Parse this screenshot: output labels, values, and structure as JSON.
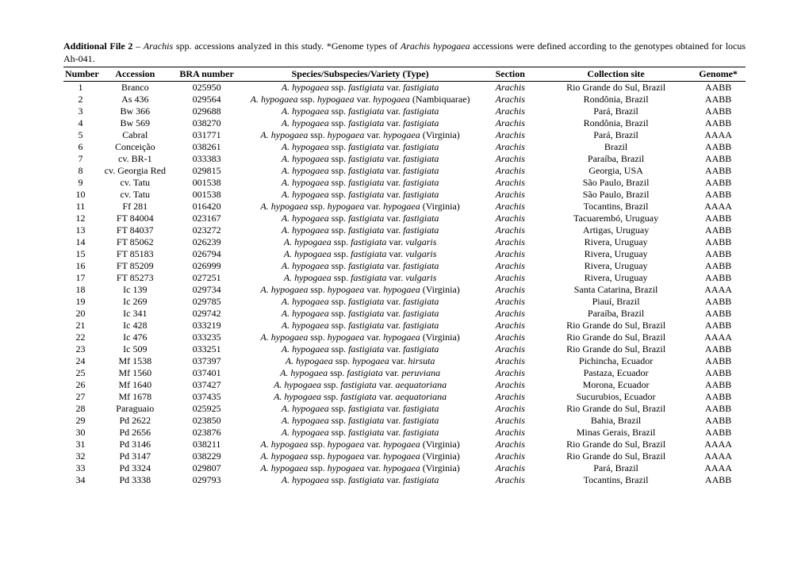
{
  "caption": {
    "label": "Additional File 2",
    "sep": " – ",
    "text1": "Arachis",
    "text2": " spp. accessions analyzed in this study. *Genome  types of ",
    "text3": "Arachis hypogaea",
    "text4": " accessions were defined according to the genotypes obtained for locus Ah-041."
  },
  "headers": {
    "num": "Number",
    "acc": "Accession",
    "bra": "BRA number",
    "sp": "Species/Subspecies/Variety (Type)",
    "sec": "Section",
    "site": "Collection site",
    "gen": "Genome*"
  },
  "rows": [
    {
      "n": "1",
      "acc": "Branco",
      "bra": "025950",
      "sp": [
        [
          "i",
          "A. hypogaea"
        ],
        [
          "r",
          " ssp. "
        ],
        [
          "i",
          "fastigiata"
        ],
        [
          "r",
          " var. "
        ],
        [
          "i",
          "fastigiata"
        ]
      ],
      "sec": "Arachis",
      "site": "Rio Grande do Sul, Brazil",
      "gen": "AABB"
    },
    {
      "n": "2",
      "acc": "As 436",
      "bra": "029564",
      "sp": [
        [
          "i",
          "A. hypogaea"
        ],
        [
          "r",
          " ssp. "
        ],
        [
          "i",
          "hypogaea"
        ],
        [
          "r",
          " var. "
        ],
        [
          "i",
          "hypogaea"
        ],
        [
          "r",
          " (Nambiquarae)"
        ]
      ],
      "sec": "Arachis",
      "site": "Rondônia, Brazil",
      "gen": "AABB"
    },
    {
      "n": "3",
      "acc": "Bw 366",
      "bra": "029688",
      "sp": [
        [
          "i",
          "A. hypogaea"
        ],
        [
          "r",
          " ssp. "
        ],
        [
          "i",
          "fastigiata"
        ],
        [
          "r",
          " var. "
        ],
        [
          "i",
          "fastigiata"
        ]
      ],
      "sec": "Arachis",
      "site": "Pará, Brazil",
      "gen": "AABB"
    },
    {
      "n": "4",
      "acc": "Bw 569",
      "bra": "038270",
      "sp": [
        [
          "i",
          "A. hypogaea"
        ],
        [
          "r",
          " ssp. "
        ],
        [
          "i",
          "fastigiata"
        ],
        [
          "r",
          " var. "
        ],
        [
          "i",
          "fastigiata"
        ]
      ],
      "sec": "Arachis",
      "site": "Rondônia, Brazil",
      "gen": "AABB"
    },
    {
      "n": "5",
      "acc": "Cabral",
      "bra": "031771",
      "sp": [
        [
          "i",
          "A. hypogaea"
        ],
        [
          "r",
          " ssp. "
        ],
        [
          "i",
          "hypogaea"
        ],
        [
          "r",
          " var. "
        ],
        [
          "i",
          "hypogaea"
        ],
        [
          "r",
          " (Virginia)"
        ]
      ],
      "sec": "Arachis",
      "site": "Pará, Brazil",
      "gen": "AAAA"
    },
    {
      "n": "6",
      "acc": "Conceição",
      "bra": "038261",
      "sp": [
        [
          "i",
          "A. hypogaea"
        ],
        [
          "r",
          " ssp. "
        ],
        [
          "i",
          "fastigiata"
        ],
        [
          "r",
          " var. "
        ],
        [
          "i",
          "fastigiata"
        ]
      ],
      "sec": "Arachis",
      "site": "Brazil",
      "gen": "AABB"
    },
    {
      "n": "7",
      "acc": "cv. BR-1",
      "bra": "033383",
      "sp": [
        [
          "i",
          "A. hypogaea"
        ],
        [
          "r",
          " ssp. "
        ],
        [
          "i",
          "fastigiata"
        ],
        [
          "r",
          " var. "
        ],
        [
          "i",
          "fastigiata"
        ]
      ],
      "sec": "Arachis",
      "site": "Paraíba, Brazil",
      "gen": "AABB"
    },
    {
      "n": "8",
      "acc": "cv. Georgia Red",
      "bra": "029815",
      "sp": [
        [
          "i",
          "A. hypogaea"
        ],
        [
          "r",
          " ssp. "
        ],
        [
          "i",
          "fastigiata"
        ],
        [
          "r",
          " var. "
        ],
        [
          "i",
          "fastigiata"
        ]
      ],
      "sec": "Arachis",
      "site": "Georgia, USA",
      "gen": "AABB"
    },
    {
      "n": "9",
      "acc": "cv. Tatu",
      "bra": "001538",
      "sp": [
        [
          "i",
          "A. hypogaea"
        ],
        [
          "r",
          " ssp. "
        ],
        [
          "i",
          "fastigiata"
        ],
        [
          "r",
          " var. "
        ],
        [
          "i",
          "fastigiata"
        ]
      ],
      "sec": "Arachis",
      "site": "São Paulo, Brazil",
      "gen": "AABB"
    },
    {
      "n": "10",
      "acc": "cv. Tatu",
      "bra": "001538",
      "sp": [
        [
          "i",
          "A. hypogaea"
        ],
        [
          "r",
          " ssp. "
        ],
        [
          "i",
          "fastigiata"
        ],
        [
          "r",
          " var. "
        ],
        [
          "i",
          "fastigiata"
        ]
      ],
      "sec": "Arachis",
      "site": "São Paulo, Brazil",
      "gen": "AABB"
    },
    {
      "n": "11",
      "acc": "Ff 281",
      "bra": "016420",
      "sp": [
        [
          "i",
          "A. hypogaea"
        ],
        [
          "r",
          " ssp. "
        ],
        [
          "i",
          "hypogaea"
        ],
        [
          "r",
          " var. "
        ],
        [
          "i",
          "hypogaea"
        ],
        [
          "r",
          " (Virginia)"
        ]
      ],
      "sec": "Arachis",
      "site": "Tocantins, Brazil",
      "gen": "AAAA"
    },
    {
      "n": "12",
      "acc": "FT 84004",
      "bra": "023167",
      "sp": [
        [
          "i",
          "A. hypogaea"
        ],
        [
          "r",
          " ssp. "
        ],
        [
          "i",
          "fastigiata"
        ],
        [
          "r",
          " var. "
        ],
        [
          "i",
          "fastigiata"
        ]
      ],
      "sec": "Arachis",
      "site": "Tacuarembó, Uruguay",
      "gen": "AABB"
    },
    {
      "n": "13",
      "acc": "FT 84037",
      "bra": "023272",
      "sp": [
        [
          "i",
          "A. hypogaea"
        ],
        [
          "r",
          " ssp. "
        ],
        [
          "i",
          "fastigiata"
        ],
        [
          "r",
          " var. "
        ],
        [
          "i",
          "fastigiata"
        ]
      ],
      "sec": "Arachis",
      "site": "Artigas, Uruguay",
      "gen": "AABB"
    },
    {
      "n": "14",
      "acc": "FT 85062",
      "bra": "026239",
      "sp": [
        [
          "i",
          "A. hypogaea"
        ],
        [
          "r",
          " ssp. "
        ],
        [
          "i",
          "fastigiata"
        ],
        [
          "r",
          " var. "
        ],
        [
          "i",
          "vulgaris"
        ]
      ],
      "sec": "Arachis",
      "site": "Rivera, Uruguay",
      "gen": "AABB"
    },
    {
      "n": "15",
      "acc": "FT 85183",
      "bra": "026794",
      "sp": [
        [
          "i",
          "A. hypogaea"
        ],
        [
          "r",
          " ssp. "
        ],
        [
          "i",
          "fastigiata"
        ],
        [
          "r",
          " var. "
        ],
        [
          "i",
          "vulgaris"
        ]
      ],
      "sec": "Arachis",
      "site": "Rivera, Uruguay",
      "gen": "AABB"
    },
    {
      "n": "16",
      "acc": "FT 85209",
      "bra": "026999",
      "sp": [
        [
          "i",
          "A. hypogaea"
        ],
        [
          "r",
          " ssp. "
        ],
        [
          "i",
          "fastigiata"
        ],
        [
          "r",
          " var. "
        ],
        [
          "i",
          "fastigiata"
        ]
      ],
      "sec": "Arachis",
      "site": "Rivera, Uruguay",
      "gen": "AABB"
    },
    {
      "n": "17",
      "acc": "FT 85273",
      "bra": "027251",
      "sp": [
        [
          "i",
          "A. hypogaea"
        ],
        [
          "r",
          " ssp. "
        ],
        [
          "i",
          "fastigiata"
        ],
        [
          "r",
          " var. "
        ],
        [
          "i",
          "vulgaris"
        ]
      ],
      "sec": "Arachis",
      "site": "Rivera, Uruguay",
      "gen": "AABB"
    },
    {
      "n": "18",
      "acc": "Ic 139",
      "bra": "029734",
      "sp": [
        [
          "i",
          "A. hypogaea"
        ],
        [
          "r",
          " ssp. "
        ],
        [
          "i",
          "hypogaea"
        ],
        [
          "r",
          " var. "
        ],
        [
          "i",
          "hypogaea"
        ],
        [
          "r",
          " (Virginia)"
        ]
      ],
      "sec": "Arachis",
      "site": "Santa Catarina, Brazil",
      "gen": "AAAA"
    },
    {
      "n": "19",
      "acc": "Ic 269",
      "bra": "029785",
      "sp": [
        [
          "i",
          "A. hypogaea"
        ],
        [
          "r",
          " ssp. "
        ],
        [
          "i",
          "fastigiata"
        ],
        [
          "r",
          " var. "
        ],
        [
          "i",
          "fastigiata"
        ]
      ],
      "sec": "Arachis",
      "site": "Piauí, Brazil",
      "gen": "AABB"
    },
    {
      "n": "20",
      "acc": "Ic 341",
      "bra": "029742",
      "sp": [
        [
          "i",
          "A. hypogaea"
        ],
        [
          "r",
          " ssp. "
        ],
        [
          "i",
          "fastigiata"
        ],
        [
          "r",
          " var. "
        ],
        [
          "i",
          "fastigiata"
        ]
      ],
      "sec": "Arachis",
      "site": "Paraíba, Brazil",
      "gen": "AABB"
    },
    {
      "n": "21",
      "acc": "Ic 428",
      "bra": "033219",
      "sp": [
        [
          "i",
          "A. hypogaea"
        ],
        [
          "r",
          " ssp. "
        ],
        [
          "i",
          "fastigiata"
        ],
        [
          "r",
          " var. "
        ],
        [
          "i",
          "fastigiata"
        ]
      ],
      "sec": "Arachis",
      "site": "Rio Grande do Sul, Brazil",
      "gen": "AABB"
    },
    {
      "n": "22",
      "acc": "Ic 476",
      "bra": "033235",
      "sp": [
        [
          "i",
          "A. hypogaea"
        ],
        [
          "r",
          " ssp. "
        ],
        [
          "i",
          "hypogaea"
        ],
        [
          "r",
          " var. "
        ],
        [
          "i",
          "hypogaea"
        ],
        [
          "r",
          " (Virginia)"
        ]
      ],
      "sec": "Arachis",
      "site": "Rio Grande do Sul, Brazil",
      "gen": "AAAA"
    },
    {
      "n": "23",
      "acc": "Ic 509",
      "bra": "033251",
      "sp": [
        [
          "i",
          "A. hypogaea"
        ],
        [
          "r",
          " ssp. "
        ],
        [
          "i",
          "fastigiata"
        ],
        [
          "r",
          " var. "
        ],
        [
          "i",
          "fastigiata"
        ]
      ],
      "sec": "Arachis",
      "site": "Rio Grande do Sul, Brazil",
      "gen": "AABB"
    },
    {
      "n": "24",
      "acc": "Mf 1538",
      "bra": "037397",
      "sp": [
        [
          "i",
          "A. hypogaea"
        ],
        [
          "r",
          " ssp. "
        ],
        [
          "i",
          "hypogaea"
        ],
        [
          "r",
          " var. "
        ],
        [
          "i",
          "hirsuta"
        ]
      ],
      "sec": "Arachis",
      "site": "Pichincha, Ecuador",
      "gen": "AABB"
    },
    {
      "n": "25",
      "acc": "Mf 1560",
      "bra": "037401",
      "sp": [
        [
          "i",
          "A. hypogaea"
        ],
        [
          "r",
          " ssp. "
        ],
        [
          "i",
          "fastigiata"
        ],
        [
          "r",
          " var. "
        ],
        [
          "i",
          "peruviana"
        ]
      ],
      "sec": "Arachis",
      "site": "Pastaza, Ecuador",
      "gen": "AABB"
    },
    {
      "n": "26",
      "acc": "Mf 1640",
      "bra": "037427",
      "sp": [
        [
          "i",
          "A. hypogaea"
        ],
        [
          "r",
          " ssp. "
        ],
        [
          "i",
          "fastigiata"
        ],
        [
          "r",
          " var. "
        ],
        [
          "i",
          "aequatoriana"
        ]
      ],
      "sec": "Arachis",
      "site": "Morona, Ecuador",
      "gen": "AABB"
    },
    {
      "n": "27",
      "acc": "Mf 1678",
      "bra": "037435",
      "sp": [
        [
          "i",
          "A. hypogaea"
        ],
        [
          "r",
          " ssp. "
        ],
        [
          "i",
          "fastigiata"
        ],
        [
          "r",
          " var. "
        ],
        [
          "i",
          "aequatoriana"
        ]
      ],
      "sec": "Arachis",
      "site": "Sucurubios, Ecuador",
      "gen": "AABB"
    },
    {
      "n": "28",
      "acc": "Paraguaio",
      "bra": "025925",
      "sp": [
        [
          "i",
          "A. hypogaea"
        ],
        [
          "r",
          " ssp. "
        ],
        [
          "i",
          "fastigiata"
        ],
        [
          "r",
          " var. "
        ],
        [
          "i",
          "fastigiata"
        ]
      ],
      "sec": "Arachis",
      "site": "Rio Grande do Sul, Brazil",
      "gen": "AABB"
    },
    {
      "n": "29",
      "acc": "Pd 2622",
      "bra": "023850",
      "sp": [
        [
          "i",
          "A. hypogaea"
        ],
        [
          "r",
          " ssp. "
        ],
        [
          "i",
          "fastigiata"
        ],
        [
          "r",
          " var. "
        ],
        [
          "i",
          "fastigiata"
        ]
      ],
      "sec": "Arachis",
      "site": "Bahia, Brazil",
      "gen": "AABB"
    },
    {
      "n": "30",
      "acc": "Pd 2656",
      "bra": "023876",
      "sp": [
        [
          "i",
          "A. hypogaea"
        ],
        [
          "r",
          " ssp. "
        ],
        [
          "i",
          "fastigiata"
        ],
        [
          "r",
          " var. "
        ],
        [
          "i",
          "fastigiata"
        ]
      ],
      "sec": "Arachis",
      "site": "Minas Gerais, Brazil",
      "gen": "AABB"
    },
    {
      "n": "31",
      "acc": "Pd 3146",
      "bra": "038211",
      "sp": [
        [
          "i",
          "A. hypogaea"
        ],
        [
          "r",
          " ssp. "
        ],
        [
          "i",
          "hypogaea"
        ],
        [
          "r",
          " var. "
        ],
        [
          "i",
          "hypogaea"
        ],
        [
          "r",
          " (Virginia)"
        ]
      ],
      "sec": "Arachis",
      "site": "Rio Grande do Sul, Brazil",
      "gen": "AAAA"
    },
    {
      "n": "32",
      "acc": "Pd 3147",
      "bra": "038229",
      "sp": [
        [
          "i",
          "A. hypogaea"
        ],
        [
          "r",
          " ssp. "
        ],
        [
          "i",
          "hypogaea"
        ],
        [
          "r",
          " var. "
        ],
        [
          "i",
          "hypogaea"
        ],
        [
          "r",
          " (Virginia)"
        ]
      ],
      "sec": "Arachis",
      "site": "Rio Grande do Sul, Brazil",
      "gen": "AAAA"
    },
    {
      "n": "33",
      "acc": "Pd 3324",
      "bra": "029807",
      "sp": [
        [
          "i",
          "A. hypogaea"
        ],
        [
          "r",
          " ssp. "
        ],
        [
          "i",
          "hypogaea"
        ],
        [
          "r",
          " var. "
        ],
        [
          "i",
          "hypogaea"
        ],
        [
          "r",
          " (Virginia)"
        ]
      ],
      "sec": "Arachis",
      "site": "Pará, Brazil",
      "gen": "AAAA"
    },
    {
      "n": "34",
      "acc": "Pd 3338",
      "bra": "029793",
      "sp": [
        [
          "i",
          "A. hypogaea"
        ],
        [
          "r",
          " ssp. "
        ],
        [
          "i",
          "fastigiata"
        ],
        [
          "r",
          " var. "
        ],
        [
          "i",
          "fastigiata"
        ]
      ],
      "sec": "Arachis",
      "site": "Tocantins, Brazil",
      "gen": "AABB"
    }
  ]
}
